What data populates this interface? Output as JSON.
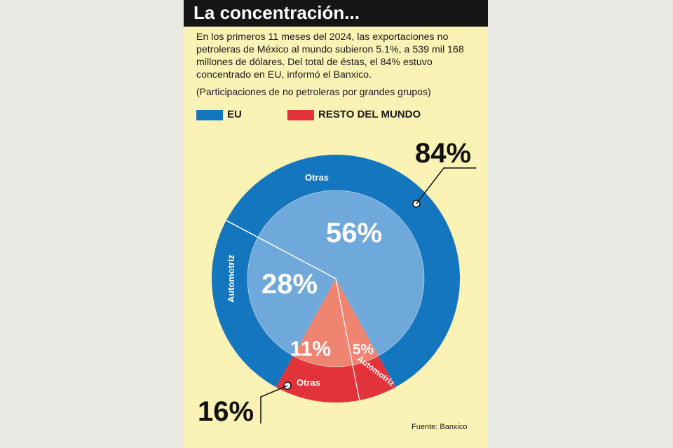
{
  "title": "La concentración...",
  "intro": "En los primeros 11 meses del 2024, las exportaciones no petroleras de México al mundo subieron 5.1%, a 539 mil 168 millones de dólares. Del total de éstas, el 84% estuvo concentrado en EU, informó el Banxico.",
  "subtitle": "(Participaciones de no petroleras por grandes grupos)",
  "source": "Fuente: Banxico",
  "colors": {
    "eu_outer": "#1576c0",
    "eu_inner": "#6fa9dc",
    "rm_outer": "#e2323a",
    "rm_inner": "#ef8570",
    "panel": "#fbf2b5"
  },
  "chart_data": {
    "type": "pie",
    "legend": [
      {
        "label": "EU",
        "color": "#1576c0"
      },
      {
        "label": "RESTO DEL MUNDO",
        "color": "#e2323a"
      }
    ],
    "outer_ring": [
      {
        "group": "EU",
        "value": 84,
        "label": "84%"
      },
      {
        "group": "RESTO DEL MUNDO",
        "value": 16,
        "label": "16%"
      }
    ],
    "inner_pie": [
      {
        "group": "EU",
        "category": "Otras",
        "value": 56,
        "label": "56%"
      },
      {
        "group": "EU",
        "category": "Automotriz",
        "value": 28,
        "label": "28%"
      },
      {
        "group": "RESTO DEL MUNDO",
        "category": "Otras",
        "value": 11,
        "label": "11%"
      },
      {
        "group": "RESTO DEL MUNDO",
        "category": "Automotriz",
        "value": 5,
        "label": "5%"
      }
    ],
    "ring_labels": [
      "Otras",
      "Automotriz",
      "Otras",
      "Automotriz"
    ]
  }
}
